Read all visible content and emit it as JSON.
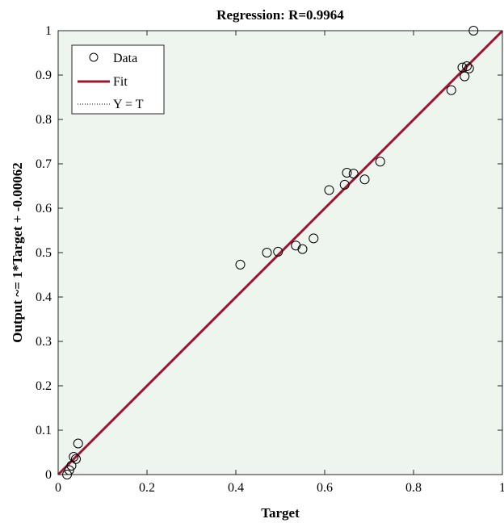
{
  "chart_data": {
    "type": "scatter",
    "title": "Regression: R=0.9964",
    "xlabel": "Target",
    "ylabel": "Output ~= 1*Target + -0.00062",
    "xlim": [
      0,
      1
    ],
    "ylim": [
      0,
      1
    ],
    "x_ticks": [
      "0",
      "0.2",
      "0.4",
      "0.6",
      "0.8",
      "1"
    ],
    "y_ticks": [
      "0",
      "0.1",
      "0.2",
      "0.3",
      "0.4",
      "0.5",
      "0.6",
      "0.7",
      "0.8",
      "0.9",
      "1"
    ],
    "x_tick_values": [
      0,
      0.2,
      0.4,
      0.6,
      0.8,
      1
    ],
    "y_tick_values": [
      0,
      0.1,
      0.2,
      0.3,
      0.4,
      0.5,
      0.6,
      0.7,
      0.8,
      0.9,
      1
    ],
    "grid": false,
    "legend_position": "top-left",
    "legend": [
      "Data",
      "Fit",
      "Y = T"
    ],
    "background_color": "#eef5ef",
    "fit_color": "#a2142f",
    "series": [
      {
        "name": "Data",
        "kind": "markers",
        "x": [
          0.02,
          0.025,
          0.03,
          0.035,
          0.04,
          0.045,
          0.41,
          0.47,
          0.495,
          0.535,
          0.55,
          0.575,
          0.61,
          0.645,
          0.65,
          0.665,
          0.69,
          0.725,
          0.885,
          0.91,
          0.915,
          0.92,
          0.925,
          0.935
        ],
        "y": [
          0.0,
          0.01,
          0.02,
          0.04,
          0.035,
          0.07,
          0.473,
          0.5,
          0.502,
          0.516,
          0.508,
          0.532,
          0.641,
          0.653,
          0.68,
          0.678,
          0.665,
          0.705,
          0.866,
          0.917,
          0.897,
          0.92,
          0.915,
          1.0
        ]
      },
      {
        "name": "Fit",
        "kind": "line",
        "x": [
          0,
          1
        ],
        "y": [
          -0.00062,
          0.99938
        ]
      },
      {
        "name": "Y = T",
        "kind": "dotted-line",
        "x": [
          0,
          1
        ],
        "y": [
          0,
          1
        ]
      }
    ]
  }
}
